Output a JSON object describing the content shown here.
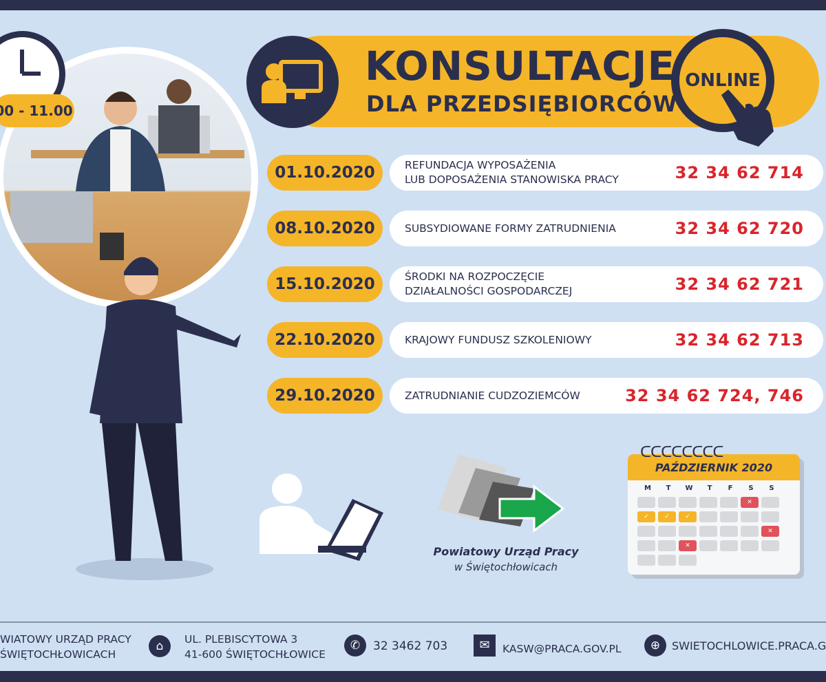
{
  "header": {
    "title": "KONSULTACJE",
    "subtitle": "DLA PRZEDSIĘBIORCÓW",
    "badge": "ONLINE"
  },
  "time": "00 - 11.00",
  "schedule": [
    {
      "date": "01.10.2020",
      "topic": "REFUNDACJA WYPOSAŻENIA\nLUB DOPOSAŻENIA STANOWISKA PRACY",
      "phone": "32 34 62 714"
    },
    {
      "date": "08.10.2020",
      "topic": "SUBSYDIOWANE FORMY ZATRUDNIENIA",
      "phone": "32 34 62 720"
    },
    {
      "date": "15.10.2020",
      "topic": "ŚRODKI NA ROZPOCZĘCIE\nDZIAŁALNOŚCI GOSPODARCZEJ",
      "phone": "32 34 62 721"
    },
    {
      "date": "22.10.2020",
      "topic": "KRAJOWY FUNDUSZ SZKOLENIOWY",
      "phone": "32 34 62 713"
    },
    {
      "date": "29.10.2020",
      "topic": "ZATRUDNIANIE CUDZOZIEMCÓW",
      "phone": "32 34 62 724, 746"
    }
  ],
  "logo": {
    "name": "Powiatowy Urząd Pracy",
    "place": "w Świętochłowicach"
  },
  "calendar": {
    "month": "PAŹDZIERNIK 2020",
    "weekdays": [
      "M",
      "T",
      "W",
      "T",
      "F",
      "S",
      "S"
    ]
  },
  "footer": {
    "org": "WIATOWY URZĄD PRACY\nŚWIĘTOCHŁOWICACH",
    "address": "UL. PLEBISCYTOWA 3\n41-600 ŚWIĘTOCHŁOWICE",
    "phone": "32 3462 703",
    "email": "KASW@PRACA.GOV.PL",
    "website": "SWIETOCHLOWICE.PRACA.GOV"
  },
  "colors": {
    "background": "#cfe0f3",
    "navy": "#2b2f4e",
    "yellow": "#f5b529",
    "red": "#d9242b"
  }
}
